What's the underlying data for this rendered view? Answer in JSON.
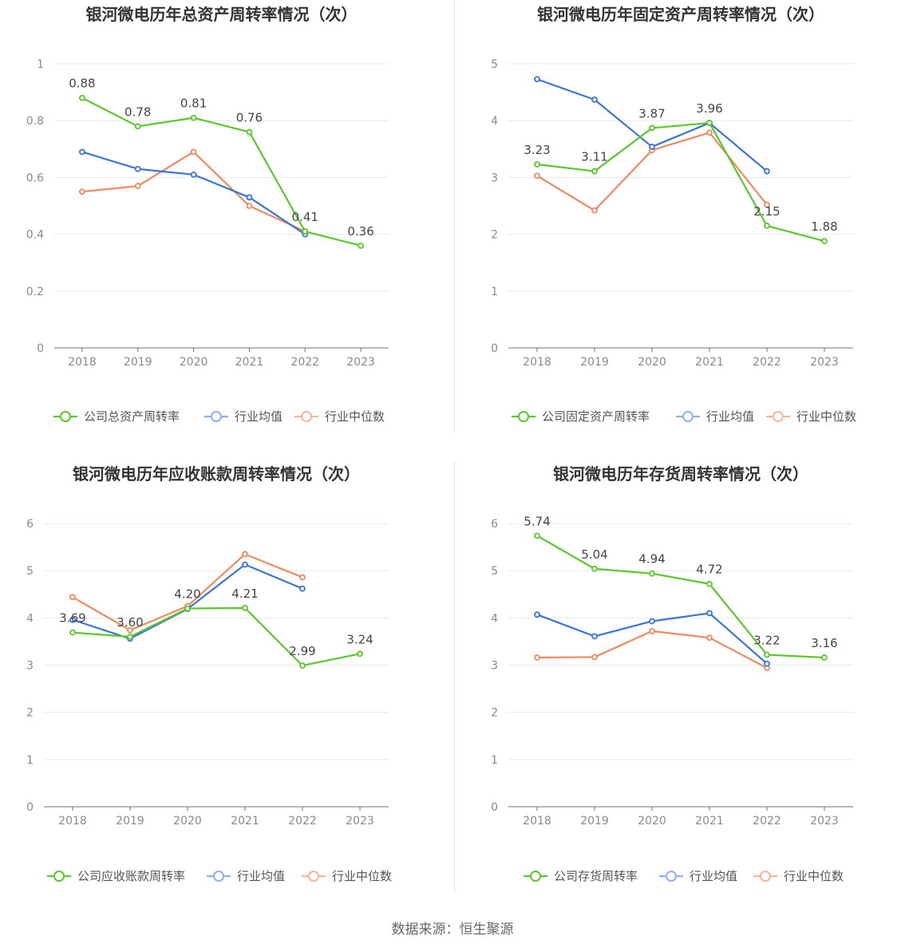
{
  "source_text": "数据来源：恒生聚源",
  "colors": {
    "company": "#5ac82c",
    "avg": "#3b74d9",
    "median": "#ef8a5f"
  },
  "chart_data": [
    {
      "type": "line",
      "title": "银河微电历年总资产周转率情况（次）",
      "categories": [
        "2018",
        "2019",
        "2020",
        "2021",
        "2022",
        "2023"
      ],
      "yticks": [
        "0",
        "0.2",
        "0.4",
        "0.6",
        "0.8",
        "1"
      ],
      "ylim": [
        0,
        1
      ],
      "series": [
        {
          "name": "公司总资产周转率",
          "values": [
            0.88,
            0.78,
            0.81,
            0.76,
            0.41,
            0.36
          ],
          "labels": [
            "0.88",
            "0.78",
            "0.81",
            "0.76",
            "0.41",
            "0.36"
          ]
        },
        {
          "name": "行业均值",
          "values": [
            0.69,
            0.63,
            0.61,
            0.53,
            0.4,
            null
          ]
        },
        {
          "name": "行业中位数",
          "values": [
            0.55,
            0.57,
            0.69,
            0.5,
            0.41,
            null
          ]
        }
      ]
    },
    {
      "type": "line",
      "title": "银河微电历年固定资产周转率情况（次）",
      "categories": [
        "2018",
        "2019",
        "2020",
        "2021",
        "2022",
        "2023"
      ],
      "yticks": [
        "0",
        "1",
        "2",
        "3",
        "4",
        "5"
      ],
      "ylim": [
        0,
        5
      ],
      "series": [
        {
          "name": "公司固定资产周转率",
          "values": [
            3.23,
            3.11,
            3.87,
            3.96,
            2.15,
            1.88
          ],
          "labels": [
            "3.23",
            "3.11",
            "3.87",
            "3.96",
            "2.15",
            "1.88"
          ]
        },
        {
          "name": "行业均值",
          "values": [
            4.73,
            4.37,
            3.54,
            3.96,
            3.11,
            null
          ]
        },
        {
          "name": "行业中位数",
          "values": [
            3.03,
            2.42,
            3.48,
            3.79,
            2.52,
            null
          ]
        }
      ]
    },
    {
      "type": "line",
      "title": "银河微电历年应收账款周转率情况（次）",
      "categories": [
        "2018",
        "2019",
        "2020",
        "2021",
        "2022",
        "2023"
      ],
      "yticks": [
        "0",
        "1",
        "2",
        "3",
        "4",
        "5",
        "6"
      ],
      "ylim": [
        0,
        6
      ],
      "series": [
        {
          "name": "公司应收账款周转率",
          "values": [
            3.69,
            3.6,
            4.2,
            4.21,
            2.99,
            3.24
          ],
          "labels": [
            "3.69",
            "3.60",
            "4.20",
            "4.21",
            "2.99",
            "3.24"
          ]
        },
        {
          "name": "行业均值",
          "values": [
            3.96,
            3.56,
            4.19,
            5.13,
            4.62,
            null
          ]
        },
        {
          "name": "行业中位数",
          "values": [
            4.44,
            3.74,
            4.25,
            5.35,
            4.86,
            null
          ]
        }
      ]
    },
    {
      "type": "line",
      "title": "银河微电历年存货周转率情况（次）",
      "categories": [
        "2018",
        "2019",
        "2020",
        "2021",
        "2022",
        "2023"
      ],
      "yticks": [
        "0",
        "1",
        "2",
        "3",
        "4",
        "5",
        "6"
      ],
      "ylim": [
        0,
        6
      ],
      "series": [
        {
          "name": "公司存货周转率",
          "values": [
            5.74,
            5.04,
            4.94,
            4.72,
            3.22,
            3.16
          ],
          "labels": [
            "5.74",
            "5.04",
            "4.94",
            "4.72",
            "3.22",
            "3.16"
          ]
        },
        {
          "name": "行业均值",
          "values": [
            4.07,
            3.61,
            3.93,
            4.1,
            3.03,
            null
          ]
        },
        {
          "name": "行业中位数",
          "values": [
            3.16,
            3.17,
            3.72,
            3.58,
            2.94,
            null
          ]
        }
      ]
    }
  ]
}
